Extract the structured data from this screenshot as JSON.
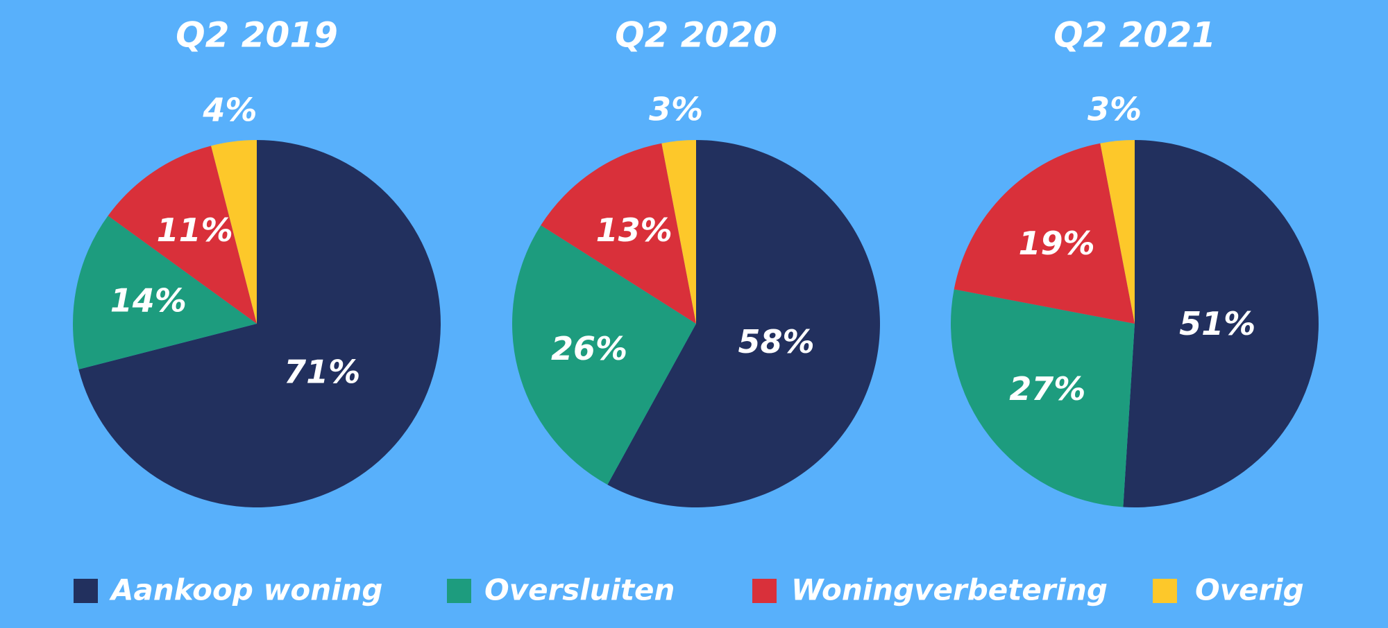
{
  "chart_data": [
    {
      "type": "pie",
      "title": "Q2 2019",
      "values": [
        71,
        14,
        11,
        4
      ],
      "value_labels": [
        "71%",
        "14%",
        "11%",
        "4%"
      ]
    },
    {
      "type": "pie",
      "title": "Q2 2020",
      "values": [
        58,
        26,
        13,
        3
      ],
      "value_labels": [
        "58%",
        "26%",
        "13%",
        "3%"
      ]
    },
    {
      "type": "pie",
      "title": "Q2 2021",
      "values": [
        51,
        27,
        19,
        3
      ],
      "value_labels": [
        "51%",
        "27%",
        "19%",
        "3%"
      ]
    }
  ],
  "legend": {
    "categories": [
      "Aankoop woning",
      "Oversluiten",
      "Woningverbetering",
      "Overig"
    ],
    "colors": [
      "#22305e",
      "#1d9c7e",
      "#d9303a",
      "#fdc82a"
    ]
  }
}
